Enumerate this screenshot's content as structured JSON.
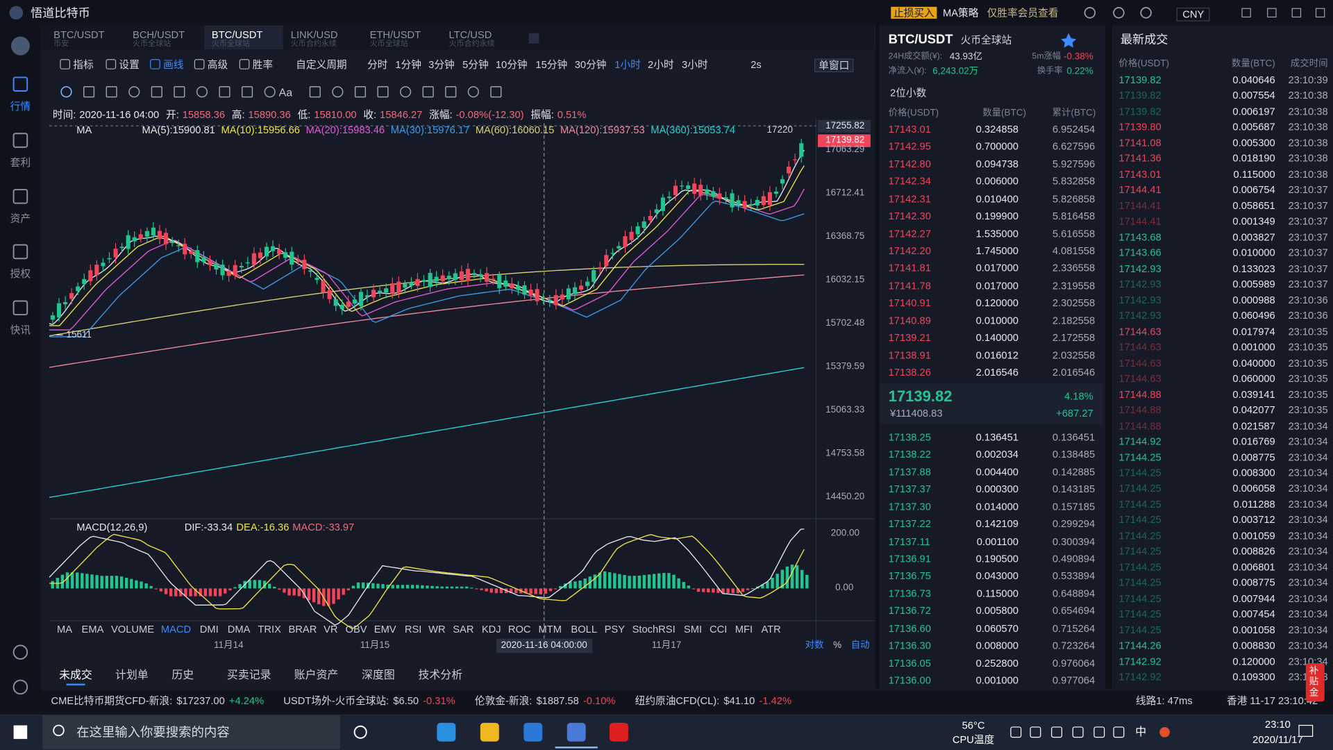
{
  "app": {
    "title": "悟道比特币",
    "badges": [
      "止损买入",
      "MA策略",
      "仅胜率会员查看"
    ],
    "currency": "CNY"
  },
  "sidebar": [
    "行情",
    "套利",
    "资产",
    "授权",
    "快讯"
  ],
  "tabs": [
    {
      "pair": "BTC/USDT",
      "sub": "币安"
    },
    {
      "pair": "BCH/USDT",
      "sub": "火币全球站"
    },
    {
      "pair": "BTC/USDT",
      "sub": "火币全球站"
    },
    {
      "pair": "LINK/USD",
      "sub": "火币合约永续"
    },
    {
      "pair": "ETH/USDT",
      "sub": "火币全球站"
    },
    {
      "pair": "LTC/USD",
      "sub": "火币合约永续"
    }
  ],
  "toolbar": [
    "指标",
    "设置",
    "画线",
    "高级",
    "胜率"
  ],
  "periods": [
    "自定义周期",
    "分时",
    "1分钟",
    "3分钟",
    "5分钟",
    "10分钟",
    "15分钟",
    "30分钟",
    "1小时",
    "2小时",
    "3小时"
  ],
  "refresh": "2s",
  "window": "单窗口",
  "draw_tools_text": "Aa",
  "info": [
    {
      "label": "时间:",
      "value": "2020-11-16 04:00"
    },
    {
      "label": "开:",
      "value": "15858.36"
    },
    {
      "label": "高:",
      "value": "15890.36"
    },
    {
      "label": "低:",
      "value": "15810.00"
    },
    {
      "label": "收:",
      "value": "15846.27"
    },
    {
      "label": "涨幅:",
      "value": "-0.08%(-12.30)"
    },
    {
      "label": "振幅:",
      "value": "0.51%"
    }
  ],
  "ma": {
    "name": "MA",
    "items": [
      {
        "text": "MA(5):15900.81",
        "color": "#e8e8e8"
      },
      {
        "text": "MA(10):15956.66",
        "color": "#f2e34a"
      },
      {
        "text": "MA(20):15983.46",
        "color": "#e45ad8"
      },
      {
        "text": "MA(30):15976.17",
        "color": "#3a9df0"
      },
      {
        "text": "MA(60):16060.15",
        "color": "#d9d27a"
      },
      {
        "text": "MA(120):15937.53",
        "color": "#f08aa0"
      },
      {
        "text": "MA(360):15053.74",
        "color": "#27d4d4"
      }
    ]
  },
  "price_axis": {
    "labels": [
      "17063.29",
      "16712.41",
      "16368.75",
      "16032.15",
      "15702.48",
      "15379.59",
      "15063.33",
      "14753.58",
      "14450.20"
    ],
    "cursor_price": "17255.82",
    "last_price": "17139.82",
    "high_marker": "17220",
    "low_marker": "15611"
  },
  "macd": {
    "name": "MACD(12,26,9)",
    "dif": "DIF:-33.34",
    "dea": "DEA:-16.36",
    "macd": "MACD:-33.97",
    "axis": [
      "200.00",
      "0.00"
    ]
  },
  "indicators": [
    "MA",
    "EMA",
    "VOLUME",
    "MACD",
    "DMI",
    "DMA",
    "TRIX",
    "BRAR",
    "VR",
    "OBV",
    "EMV",
    "RSI",
    "WR",
    "SAR",
    "KDJ",
    "ROC",
    "MTM",
    "BOLL",
    "PSY",
    "StochRSI",
    "SMI",
    "CCI",
    "MFI",
    "ATR"
  ],
  "dates": [
    "11月14",
    "11月15",
    "11月17"
  ],
  "cursor_date": "2020-11-16 04:00:00",
  "scale_options": [
    "对数",
    "%",
    "自动"
  ],
  "bottom_tabs": [
    "未成交",
    "计划单",
    "历史",
    "买卖记录",
    "账户资产",
    "深度图",
    "技术分析"
  ],
  "orderbook": {
    "pair": "BTC/USDT",
    "exchange": "火币全球站",
    "volume_label": "24H成交额(¥):",
    "volume": "43.93亿",
    "change5m_label": "5m涨幅",
    "change5m": "-0.38%",
    "inflow_label": "净流入(¥):",
    "inflow": "6,243.02万",
    "turnover_label": "换手率",
    "turnover": "0.22%",
    "precision": "2位小数",
    "columns": [
      "价格(USDT)",
      "数量(BTC)",
      "累计(BTC)"
    ],
    "asks": [
      [
        "17143.01",
        "0.324858",
        "6.952454"
      ],
      [
        "17142.95",
        "0.700000",
        "6.627596"
      ],
      [
        "17142.80",
        "0.094738",
        "5.927596"
      ],
      [
        "17142.34",
        "0.006000",
        "5.832858"
      ],
      [
        "17142.31",
        "0.010400",
        "5.826858"
      ],
      [
        "17142.30",
        "0.199900",
        "5.816458"
      ],
      [
        "17142.27",
        "1.535000",
        "5.616558"
      ],
      [
        "17142.20",
        "1.745000",
        "4.081558"
      ],
      [
        "17141.81",
        "0.017000",
        "2.336558"
      ],
      [
        "17141.78",
        "0.017000",
        "2.319558"
      ],
      [
        "17140.91",
        "0.120000",
        "2.302558"
      ],
      [
        "17140.89",
        "0.010000",
        "2.182558"
      ],
      [
        "17139.21",
        "0.140000",
        "2.172558"
      ],
      [
        "17138.91",
        "0.016012",
        "2.032558"
      ],
      [
        "17138.26",
        "2.016546",
        "2.016546"
      ]
    ],
    "last": "17139.82",
    "last_change": "4.18%",
    "last_cny": "¥111408.83",
    "last_diff": "+687.27",
    "bids": [
      [
        "17138.25",
        "0.136451",
        "0.136451"
      ],
      [
        "17138.22",
        "0.002034",
        "0.138485"
      ],
      [
        "17137.88",
        "0.004400",
        "0.142885"
      ],
      [
        "17137.37",
        "0.000300",
        "0.143185"
      ],
      [
        "17137.30",
        "0.014000",
        "0.157185"
      ],
      [
        "17137.22",
        "0.142109",
        "0.299294"
      ],
      [
        "17137.11",
        "0.001100",
        "0.300394"
      ],
      [
        "17136.91",
        "0.190500",
        "0.490894"
      ],
      [
        "17136.75",
        "0.043000",
        "0.533894"
      ],
      [
        "17136.73",
        "0.115000",
        "0.648894"
      ],
      [
        "17136.72",
        "0.005800",
        "0.654694"
      ],
      [
        "17136.60",
        "0.060570",
        "0.715264"
      ],
      [
        "17136.30",
        "0.008000",
        "0.723264"
      ],
      [
        "17136.05",
        "0.252800",
        "0.976064"
      ],
      [
        "17136.00",
        "0.001000",
        "0.977064"
      ]
    ]
  },
  "trades": {
    "title": "最新成交",
    "columns": [
      "价格(USDT)",
      "数量(BTC)",
      "成交时间"
    ],
    "rows": [
      {
        "price": "17139.82",
        "qty": "0.040646",
        "time": "23:10:39",
        "side": "buy"
      },
      {
        "price": "17139.82",
        "qty": "0.007554",
        "time": "23:10:38",
        "side": "buy"
      },
      {
        "price": "17139.82",
        "qty": "0.006197",
        "time": "23:10:38",
        "side": "buy"
      },
      {
        "price": "17139.80",
        "qty": "0.005687",
        "time": "23:10:38",
        "side": "sell"
      },
      {
        "price": "17141.08",
        "qty": "0.005300",
        "time": "23:10:38",
        "side": "sell"
      },
      {
        "price": "17141.36",
        "qty": "0.018190",
        "time": "23:10:38",
        "side": "sell"
      },
      {
        "price": "17143.01",
        "qty": "0.115000",
        "time": "23:10:38",
        "side": "sell"
      },
      {
        "price": "17144.41",
        "qty": "0.006754",
        "time": "23:10:37",
        "side": "sell"
      },
      {
        "price": "17144.41",
        "qty": "0.058651",
        "time": "23:10:37",
        "side": "sell"
      },
      {
        "price": "17144.41",
        "qty": "0.001349",
        "time": "23:10:37",
        "side": "sell"
      },
      {
        "price": "17143.68",
        "qty": "0.003827",
        "time": "23:10:37",
        "side": "buy"
      },
      {
        "price": "17143.66",
        "qty": "0.010000",
        "time": "23:10:37",
        "side": "buy"
      },
      {
        "price": "17142.93",
        "qty": "0.133023",
        "time": "23:10:37",
        "side": "buy"
      },
      {
        "price": "17142.93",
        "qty": "0.005989",
        "time": "23:10:37",
        "side": "buy"
      },
      {
        "price": "17142.93",
        "qty": "0.000988",
        "time": "23:10:36",
        "side": "buy"
      },
      {
        "price": "17142.93",
        "qty": "0.060496",
        "time": "23:10:36",
        "side": "buy"
      },
      {
        "price": "17144.63",
        "qty": "0.017974",
        "time": "23:10:35",
        "side": "sell"
      },
      {
        "price": "17144.63",
        "qty": "0.001000",
        "time": "23:10:35",
        "side": "sell"
      },
      {
        "price": "17144.63",
        "qty": "0.040000",
        "time": "23:10:35",
        "side": "sell"
      },
      {
        "price": "17144.63",
        "qty": "0.060000",
        "time": "23:10:35",
        "side": "sell"
      },
      {
        "price": "17144.88",
        "qty": "0.039141",
        "time": "23:10:35",
        "side": "sell"
      },
      {
        "price": "17144.88",
        "qty": "0.042077",
        "time": "23:10:35",
        "side": "sell"
      },
      {
        "price": "17144.88",
        "qty": "0.021587",
        "time": "23:10:34",
        "side": "sell"
      },
      {
        "price": "17144.92",
        "qty": "0.016769",
        "time": "23:10:34",
        "side": "buy"
      },
      {
        "price": "17144.25",
        "qty": "0.008775",
        "time": "23:10:34",
        "side": "buy"
      },
      {
        "price": "17144.25",
        "qty": "0.008300",
        "time": "23:10:34",
        "side": "buy"
      },
      {
        "price": "17144.25",
        "qty": "0.006058",
        "time": "23:10:34",
        "side": "buy"
      },
      {
        "price": "17144.25",
        "qty": "0.011288",
        "time": "23:10:34",
        "side": "buy"
      },
      {
        "price": "17144.25",
        "qty": "0.003712",
        "time": "23:10:34",
        "side": "buy"
      },
      {
        "price": "17144.25",
        "qty": "0.001059",
        "time": "23:10:34",
        "side": "buy"
      },
      {
        "price": "17144.25",
        "qty": "0.008826",
        "time": "23:10:34",
        "side": "buy"
      },
      {
        "price": "17144.25",
        "qty": "0.006801",
        "time": "23:10:34",
        "side": "buy"
      },
      {
        "price": "17144.25",
        "qty": "0.008775",
        "time": "23:10:34",
        "side": "buy"
      },
      {
        "price": "17144.25",
        "qty": "0.007944",
        "time": "23:10:34",
        "side": "buy"
      },
      {
        "price": "17144.25",
        "qty": "0.007454",
        "time": "23:10:34",
        "side": "buy"
      },
      {
        "price": "17144.25",
        "qty": "0.001058",
        "time": "23:10:34",
        "side": "buy"
      },
      {
        "price": "17144.26",
        "qty": "0.008830",
        "time": "23:10:34",
        "side": "buy"
      },
      {
        "price": "17142.92",
        "qty": "0.120000",
        "time": "23:10:34",
        "side": "buy"
      },
      {
        "price": "17142.92",
        "qty": "0.109300",
        "time": "23:10:33",
        "side": "buy"
      }
    ]
  },
  "subsidy": "补贴金",
  "tickers": [
    {
      "name": "CME比特币期货CFD-新浪:",
      "price": "$17237.00",
      "change": "+4.24%"
    },
    {
      "name": "USDT场外-火币全球站:",
      "price": "$6.50",
      "change": "-0.31%"
    },
    {
      "name": "伦敦金-新浪:",
      "price": "$1887.58",
      "change": "-0.10%"
    },
    {
      "name": "纽约原油CFD(CL):",
      "price": "$41.10",
      "change": "-1.42%"
    }
  ],
  "status": {
    "line": "线路1: 47ms",
    "clock": "香港 11-17 23:10:42"
  },
  "taskbar": {
    "search": "在这里输入你要搜索的内容",
    "temp": "56°C",
    "temp_label": "CPU温度",
    "ime": "中",
    "time": "23:10",
    "date": "2020/11/17"
  }
}
